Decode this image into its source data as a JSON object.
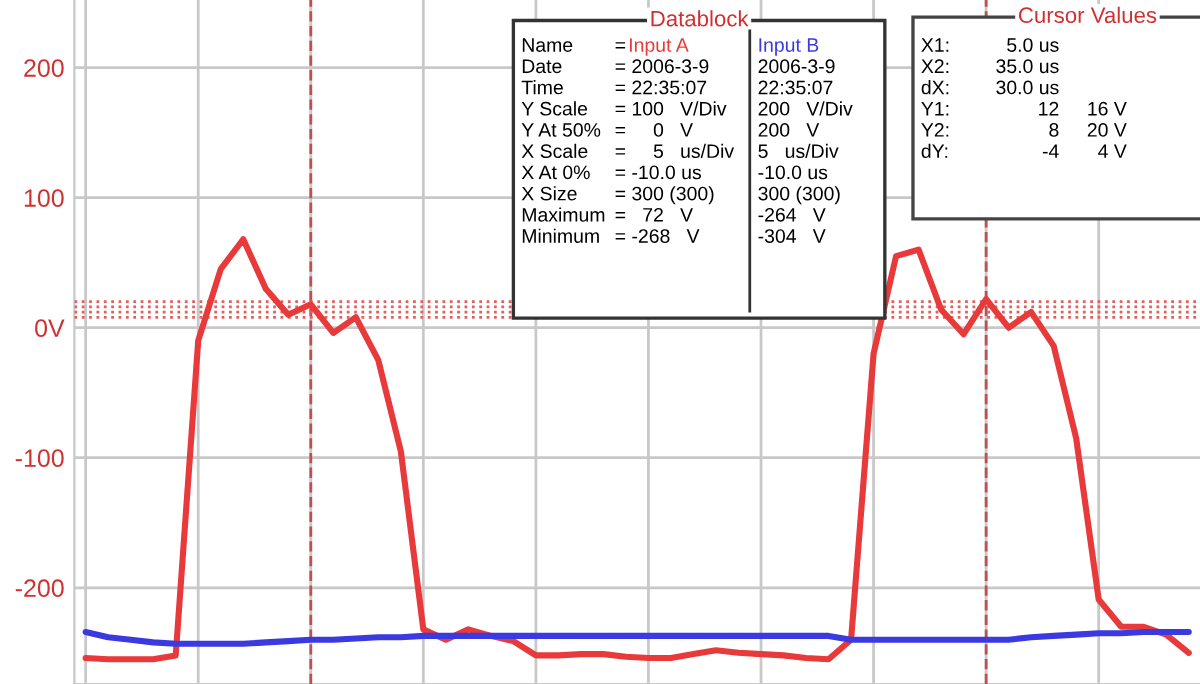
{
  "chart_data": {
    "type": "line",
    "categories": [
      null,
      null,
      null,
      null,
      null,
      null,
      null,
      null,
      null,
      null,
      null,
      null,
      null,
      null,
      null,
      null,
      null,
      null,
      null,
      null,
      null,
      null,
      null,
      null,
      null,
      null,
      null,
      null,
      null,
      null,
      null,
      null,
      null,
      null,
      null,
      null,
      null,
      null,
      null,
      null,
      null,
      null,
      null,
      null,
      null,
      null,
      null,
      null,
      null,
      null
    ],
    "series": [
      {
        "name": "Input A",
        "color": "#e83a3a",
        "values": [
          -254,
          -255,
          -255,
          -255,
          -252,
          -10,
          45,
          68,
          30,
          10,
          18,
          -4,
          8,
          -25,
          -95,
          -232,
          -240,
          -232,
          -237,
          -241,
          -252,
          -252,
          -251,
          -251,
          -253,
          -254,
          -254,
          -251,
          -248,
          -250,
          -251,
          -252,
          -254,
          -255,
          -240,
          -20,
          55,
          60,
          14,
          -5,
          22,
          0,
          12,
          -14,
          -85,
          -209,
          -230,
          -230,
          -236,
          -250
        ]
      },
      {
        "name": "Input B",
        "color": "#3a3ae0",
        "values": [
          -234,
          -238,
          -240,
          -242,
          -243,
          -243,
          -243,
          -243,
          -242,
          -241,
          -240,
          -240,
          -239,
          -238,
          -238,
          -237,
          -237,
          -237,
          -237,
          -237,
          -237,
          -237,
          -237,
          -237,
          -237,
          -237,
          -237,
          -237,
          -237,
          -237,
          -237,
          -237,
          -237,
          -237,
          -240,
          -240,
          -240,
          -240,
          -240,
          -240,
          -240,
          -240,
          -238,
          -237,
          -236,
          -235,
          -235,
          -234,
          -234,
          -234
        ]
      }
    ],
    "ylim": [
      -274,
      252
    ],
    "yticks": [
      -200,
      -100,
      {
        "value": 0,
        "label": "0V"
      },
      100,
      200
    ],
    "tick_labels": "y",
    "grid": true,
    "legend": "top",
    "line_style": "solid",
    "marker": "none",
    "ref_lines": [
      {
        "axis": "y",
        "value": 8,
        "color": "#e06060",
        "line_style": "dotted"
      },
      {
        "axis": "y",
        "value": 12,
        "color": "#e06060",
        "line_style": "dotted"
      },
      {
        "axis": "y",
        "value": 16,
        "color": "#e06060",
        "line_style": "dotted"
      },
      {
        "axis": "y",
        "value": 20,
        "color": "#e06060",
        "line_style": "dotted"
      }
    ],
    "annotations": [
      "Datablock",
      "Name\nDate\nTime\nY Scale\nY At 50%\nX Scale\nX At 0%\nX Size\nMaximum\nMinimum",
      "=\n= 2006-3-9\n= 22:35:07\n= 100   V/Div\n=     0   V\n=     5   us/Div\n= -10.0 us\n= 300 (300)\n=   72   V\n= -268   V",
      "\n2006-3-9\n22:35:07\n200   V/Div\n200   V\n5   us/Div\n-10.0 us\n300 (300)\n-264   V\n-304   V",
      "Cursor Values",
      "X1:\nX2:\ndX:\nY1:\nY2:\ndY:",
      "5.0 us\n35.0 us\n30.0 us\n12\n8\n-4",
      "\n\n\n16 V\n20 V\n4 V"
    ]
  }
}
